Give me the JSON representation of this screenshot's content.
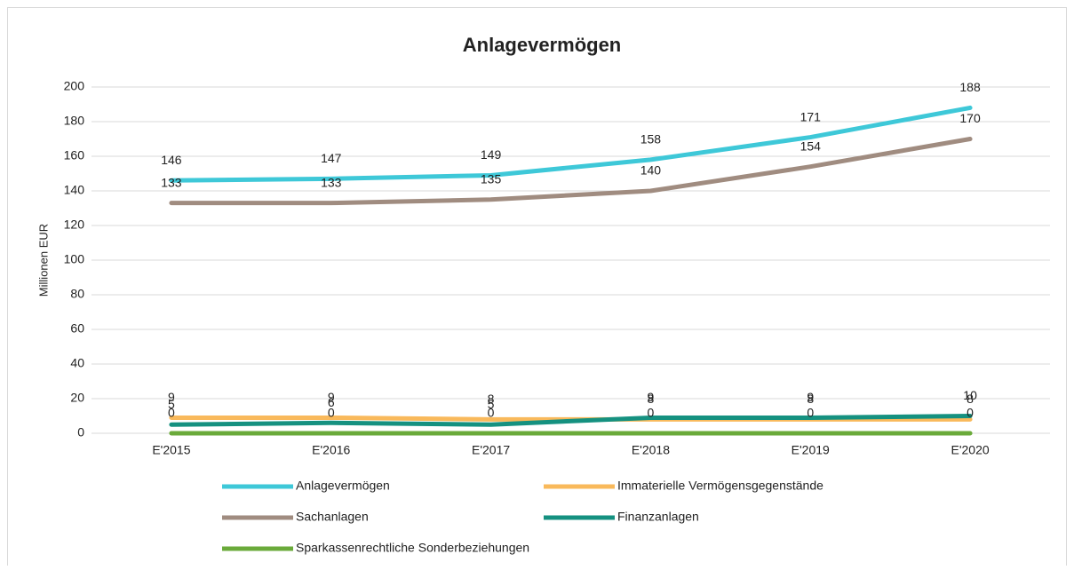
{
  "chart_data": {
    "type": "line",
    "title": "Anlagevermögen",
    "y_label": "Millionen EUR",
    "categories": [
      "E'2015",
      "E'2016",
      "E'2017",
      "E'2018",
      "E'2019",
      "E'2020"
    ],
    "series": [
      {
        "name": "Anlagevermögen",
        "color": "#3ec8d8",
        "values": [
          146,
          147,
          149,
          158,
          171,
          188
        ]
      },
      {
        "name": "Immaterielle Vermögensgegenstände",
        "color": "#f9b95b",
        "values": [
          9,
          9,
          8,
          8,
          8,
          8
        ]
      },
      {
        "name": "Sachanlagen",
        "color": "#a08c80",
        "values": [
          133,
          133,
          135,
          140,
          154,
          170
        ]
      },
      {
        "name": "Finanzanlagen",
        "color": "#159180",
        "values": [
          5,
          6,
          5,
          9,
          9,
          10
        ]
      },
      {
        "name": "Sparkassenrechtliche Sonderbeziehungen",
        "color": "#6aaa3a",
        "values": [
          0,
          0,
          0,
          0,
          0,
          0
        ]
      }
    ],
    "ylim": [
      0,
      200
    ],
    "yticks": [
      0,
      20,
      40,
      60,
      80,
      100,
      120,
      140,
      160,
      180,
      200
    ],
    "grid": true
  }
}
